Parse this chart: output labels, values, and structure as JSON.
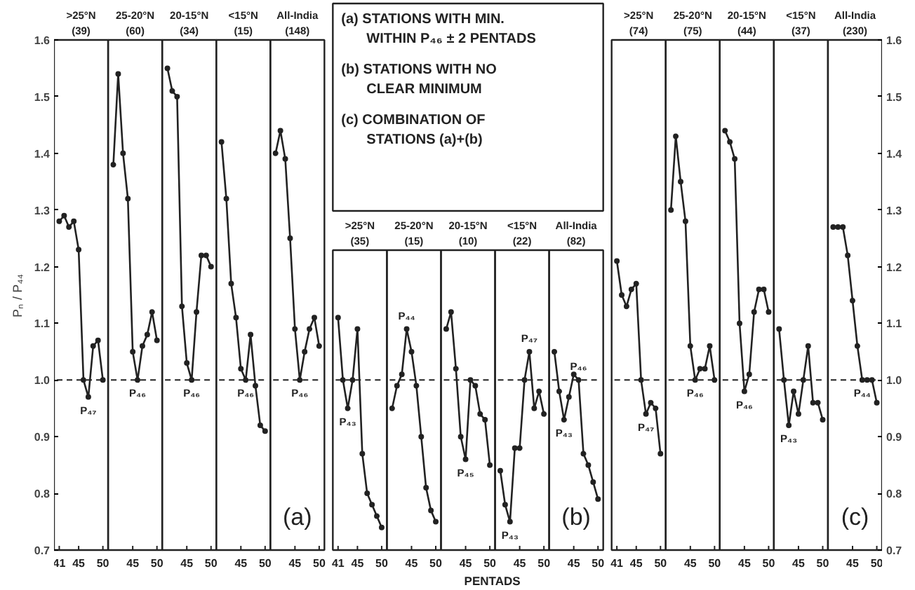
{
  "chart_data": [
    {
      "type": "line",
      "title": ">25°N (39)",
      "x": [
        41,
        42,
        43,
        44,
        45,
        46,
        47,
        48,
        49,
        50
      ],
      "values": [
        1.28,
        1.29,
        1.27,
        1.28,
        1.23,
        1.0,
        0.97,
        1.06,
        1.07,
        1.0
      ],
      "color": "#222222",
      "marker": "circle",
      "xlim": [
        40.5,
        50.5
      ],
      "ylim": [
        0.7,
        1.6
      ],
      "xticks": [
        41,
        45,
        50
      ],
      "yticks": [
        0.7,
        0.8,
        0.9,
        {
          "value": 1.0,
          "label": "1.0"
        },
        1.1,
        1.2,
        1.3,
        1.4,
        1.5,
        1.6
      ],
      "ylabel": "Pₙ / P₄₄",
      "ref_lines": [
        {
          "axis": "y",
          "value": 1.0,
          "line_style": "dashed"
        }
      ],
      "annotations": [
        {
          "text": "P₄₇",
          "x": 47,
          "y": 0.97
        }
      ]
    },
    {
      "type": "line",
      "title": "25-20°N (60)",
      "x": [
        41,
        42,
        43,
        44,
        45,
        46,
        47,
        48,
        49,
        50
      ],
      "values": [
        1.38,
        1.54,
        1.4,
        1.32,
        1.05,
        1.0,
        1.06,
        1.08,
        1.12,
        1.07
      ],
      "color": "#222222",
      "marker": "circle",
      "xlim": [
        40.5,
        50.5
      ],
      "ylim": [
        0.7,
        1.6
      ],
      "xticks": [
        45,
        50
      ],
      "tick_labels": "x",
      "ref_lines": [
        {
          "axis": "y",
          "value": 1.0,
          "line_style": "dashed"
        }
      ],
      "annotations": [
        {
          "text": "P₄₆",
          "x": 46,
          "y": 1.0
        }
      ]
    },
    {
      "type": "line",
      "title": "20-15°N (34)",
      "x": [
        41,
        42,
        43,
        44,
        45,
        46,
        47,
        48,
        49,
        50
      ],
      "values": [
        1.55,
        1.51,
        1.5,
        1.13,
        1.03,
        1.0,
        1.12,
        1.22,
        1.22,
        1.2
      ],
      "color": "#222222",
      "marker": "circle",
      "xlim": [
        40.5,
        50.5
      ],
      "ylim": [
        0.7,
        1.6
      ],
      "xticks": [
        45,
        50
      ],
      "tick_labels": "x",
      "ref_lines": [
        {
          "axis": "y",
          "value": 1.0,
          "line_style": "dashed"
        }
      ],
      "annotations": [
        {
          "text": "P₄₆",
          "x": 46,
          "y": 1.0
        }
      ]
    },
    {
      "type": "line",
      "title": "<15°N (15)",
      "x": [
        41,
        42,
        43,
        44,
        45,
        46,
        47,
        48,
        49,
        50
      ],
      "values": [
        1.42,
        1.32,
        1.17,
        1.11,
        1.02,
        1.0,
        1.08,
        0.99,
        0.92,
        0.91
      ],
      "color": "#222222",
      "marker": "circle",
      "xlim": [
        40.5,
        50.5
      ],
      "ylim": [
        0.7,
        1.6
      ],
      "xticks": [
        45,
        50
      ],
      "tick_labels": "x",
      "ref_lines": [
        {
          "axis": "y",
          "value": 1.0,
          "line_style": "dashed"
        }
      ],
      "annotations": [
        {
          "text": "P₄₆",
          "x": 46,
          "y": 1.0
        }
      ]
    },
    {
      "type": "line",
      "title": "All-India (148)",
      "x": [
        41,
        42,
        43,
        44,
        45,
        46,
        47,
        48,
        49,
        50
      ],
      "values": [
        1.4,
        1.44,
        1.39,
        1.25,
        1.09,
        1.0,
        1.05,
        1.09,
        1.11,
        1.06
      ],
      "color": "#222222",
      "marker": "circle",
      "xlim": [
        40.5,
        50.5
      ],
      "ylim": [
        0.7,
        1.6
      ],
      "xticks": [
        45,
        50
      ],
      "tick_labels": "x",
      "ref_lines": [
        {
          "axis": "y",
          "value": 1.0,
          "line_style": "dashed"
        }
      ],
      "annotations": [
        {
          "text": "P₄₆",
          "x": 46,
          "y": 1.0
        },
        "(a)"
      ]
    },
    {
      "type": "line",
      "title": ">25°N (35)",
      "x": [
        41,
        42,
        43,
        44,
        45,
        46,
        47,
        48,
        49,
        50
      ],
      "values": [
        1.11,
        1.0,
        0.95,
        1.0,
        1.09,
        0.87,
        0.8,
        0.78,
        0.76,
        0.74
      ],
      "color": "#222222",
      "marker": "circle",
      "xlim": [
        40.5,
        50.5
      ],
      "ylim": [
        0.7,
        1.6
      ],
      "xticks": [
        41,
        45,
        50
      ],
      "tick_labels": "x",
      "ref_lines": [
        {
          "axis": "y",
          "value": 1.0,
          "line_style": "dashed"
        }
      ],
      "annotations": [
        {
          "text": "P₄₃",
          "x": 43,
          "y": 0.95
        },
        "(a) STATIONS WITH MIN. WITHIN P₄₆ ± 2 PENTADS",
        "(b) STATIONS WITH NO CLEAR MINIMUM",
        "(c) COMBINATION OF STATIONS (a)+(b)"
      ]
    },
    {
      "type": "line",
      "title": "25-20°N (15)",
      "x": [
        41,
        42,
        43,
        44,
        45,
        46,
        47,
        48,
        49,
        50
      ],
      "values": [
        0.95,
        0.99,
        1.01,
        1.09,
        1.05,
        0.99,
        0.9,
        0.81,
        0.77,
        0.75
      ],
      "color": "#222222",
      "marker": "circle",
      "xlim": [
        40.5,
        50.5
      ],
      "ylim": [
        0.7,
        1.6
      ],
      "xticks": [
        45,
        50
      ],
      "tick_labels": "x",
      "ref_lines": [
        {
          "axis": "y",
          "value": 1.0,
          "line_style": "dashed"
        }
      ],
      "annotations": [
        {
          "text": "P₄₄",
          "x": 44,
          "y": 1.09
        }
      ]
    },
    {
      "type": "line",
      "title": "20-15°N (10)",
      "x": [
        41,
        42,
        43,
        44,
        45,
        46,
        47,
        48,
        49,
        50
      ],
      "values": [
        1.09,
        1.12,
        1.02,
        0.9,
        0.86,
        1.0,
        0.99,
        0.94,
        0.93,
        0.85
      ],
      "color": "#222222",
      "marker": "circle",
      "xlim": [
        40.5,
        50.5
      ],
      "ylim": [
        0.7,
        1.6
      ],
      "xticks": [
        45,
        50
      ],
      "tick_labels": "x",
      "xlabel": "PENTADS",
      "ref_lines": [
        {
          "axis": "y",
          "value": 1.0,
          "line_style": "dashed"
        }
      ],
      "annotations": [
        {
          "text": "P₄₅",
          "x": 45,
          "y": 0.86
        }
      ]
    },
    {
      "type": "line",
      "title": "<15°N (22)",
      "x": [
        41,
        42,
        43,
        44,
        45,
        46,
        47,
        48,
        49,
        50
      ],
      "values": [
        0.84,
        0.78,
        0.75,
        0.88,
        0.88,
        1.0,
        1.05,
        0.95,
        0.98,
        0.94
      ],
      "color": "#222222",
      "marker": "circle",
      "xlim": [
        40.5,
        50.5
      ],
      "ylim": [
        0.7,
        1.6
      ],
      "xticks": [
        45,
        50
      ],
      "tick_labels": "x",
      "ref_lines": [
        {
          "axis": "y",
          "value": 1.0,
          "line_style": "dashed"
        }
      ],
      "annotations": [
        {
          "text": "P₄₃",
          "x": 43,
          "y": 0.75
        },
        {
          "text": "P₄₇",
          "x": 47,
          "y": 1.05
        }
      ]
    },
    {
      "type": "line",
      "title": "All-India (82)",
      "x": [
        41,
        42,
        43,
        44,
        45,
        46,
        47,
        48,
        49,
        50
      ],
      "values": [
        1.05,
        0.98,
        0.93,
        0.97,
        1.01,
        1.0,
        0.87,
        0.85,
        0.82,
        0.79
      ],
      "color": "#222222",
      "marker": "circle",
      "xlim": [
        40.5,
        50.5
      ],
      "ylim": [
        0.7,
        1.6
      ],
      "xticks": [
        45,
        50
      ],
      "tick_labels": "x",
      "ref_lines": [
        {
          "axis": "y",
          "value": 1.0,
          "line_style": "dashed"
        }
      ],
      "annotations": [
        {
          "text": "P₄₃",
          "x": 43,
          "y": 0.93
        },
        {
          "text": "P₄₆",
          "x": 46,
          "y": 1.0
        },
        "(b)"
      ]
    },
    {
      "type": "line",
      "title": ">25°N (74)",
      "x": [
        41,
        42,
        43,
        44,
        45,
        46,
        47,
        48,
        49,
        50
      ],
      "values": [
        1.21,
        1.15,
        1.13,
        1.16,
        1.17,
        1.0,
        0.94,
        0.96,
        0.95,
        0.87
      ],
      "color": "#222222",
      "marker": "circle",
      "xlim": [
        40.5,
        50.5
      ],
      "ylim": [
        0.7,
        1.6
      ],
      "xticks": [
        41,
        45,
        50
      ],
      "tick_labels": "x",
      "ref_lines": [
        {
          "axis": "y",
          "value": 1.0,
          "line_style": "dashed"
        }
      ],
      "annotations": [
        {
          "text": "P₄₇",
          "x": 47,
          "y": 0.94
        }
      ]
    },
    {
      "type": "line",
      "title": "25-20°N (75)",
      "x": [
        41,
        42,
        43,
        44,
        45,
        46,
        47,
        48,
        49,
        50
      ],
      "values": [
        1.3,
        1.43,
        1.35,
        1.28,
        1.06,
        1.0,
        1.02,
        1.02,
        1.06,
        1.0
      ],
      "color": "#222222",
      "marker": "circle",
      "xlim": [
        40.5,
        50.5
      ],
      "ylim": [
        0.7,
        1.6
      ],
      "xticks": [
        45,
        50
      ],
      "tick_labels": "x",
      "ref_lines": [
        {
          "axis": "y",
          "value": 1.0,
          "line_style": "dashed"
        }
      ],
      "annotations": [
        {
          "text": "P₄₆",
          "x": 46,
          "y": 1.0
        }
      ]
    },
    {
      "type": "line",
      "title": "20-15°N (44)",
      "x": [
        41,
        42,
        43,
        44,
        45,
        46,
        47,
        48,
        49,
        50
      ],
      "values": [
        1.44,
        1.42,
        1.39,
        1.1,
        0.98,
        1.01,
        1.12,
        1.16,
        1.16,
        1.12
      ],
      "color": "#222222",
      "marker": "circle",
      "xlim": [
        40.5,
        50.5
      ],
      "ylim": [
        0.7,
        1.6
      ],
      "xticks": [
        45,
        50
      ],
      "tick_labels": "x",
      "ref_lines": [
        {
          "axis": "y",
          "value": 1.0,
          "line_style": "dashed"
        }
      ],
      "annotations": [
        {
          "text": "P₄₆",
          "x": 45,
          "y": 0.98
        }
      ]
    },
    {
      "type": "line",
      "title": "<15°N (37)",
      "x": [
        41,
        42,
        43,
        44,
        45,
        46,
        47,
        48,
        49,
        50
      ],
      "values": [
        1.09,
        1.0,
        0.92,
        0.98,
        0.94,
        1.0,
        1.06,
        0.96,
        0.96,
        0.93
      ],
      "color": "#222222",
      "marker": "circle",
      "xlim": [
        40.5,
        50.5
      ],
      "ylim": [
        0.7,
        1.6
      ],
      "xticks": [
        45,
        50
      ],
      "tick_labels": "x",
      "ref_lines": [
        {
          "axis": "y",
          "value": 1.0,
          "line_style": "dashed"
        }
      ],
      "annotations": [
        {
          "text": "P₄₃",
          "x": 43,
          "y": 0.92
        }
      ]
    },
    {
      "type": "line",
      "title": "All-India (230)",
      "x": [
        41,
        42,
        43,
        44,
        45,
        46,
        47,
        48,
        49,
        50
      ],
      "values": [
        1.27,
        1.27,
        1.27,
        1.22,
        1.14,
        1.06,
        1.0,
        1.0,
        1.0,
        0.96
      ],
      "color": "#222222",
      "marker": "circle",
      "xlim": [
        40.5,
        50.5
      ],
      "ylim": [
        0.7,
        1.6
      ],
      "xticks": [
        45,
        50
      ],
      "yticks": [
        0.7,
        0.8,
        0.9,
        {
          "value": 1.0,
          "label": "1.0"
        },
        1.1,
        1.2,
        1.3,
        1.4,
        1.5,
        1.6
      ],
      "ref_lines": [
        {
          "axis": "y",
          "value": 1.0,
          "line_style": "dashed"
        }
      ],
      "annotations": [
        {
          "text": "P₄₄",
          "x": 47,
          "y": 1.0
        },
        "(c)"
      ]
    }
  ]
}
